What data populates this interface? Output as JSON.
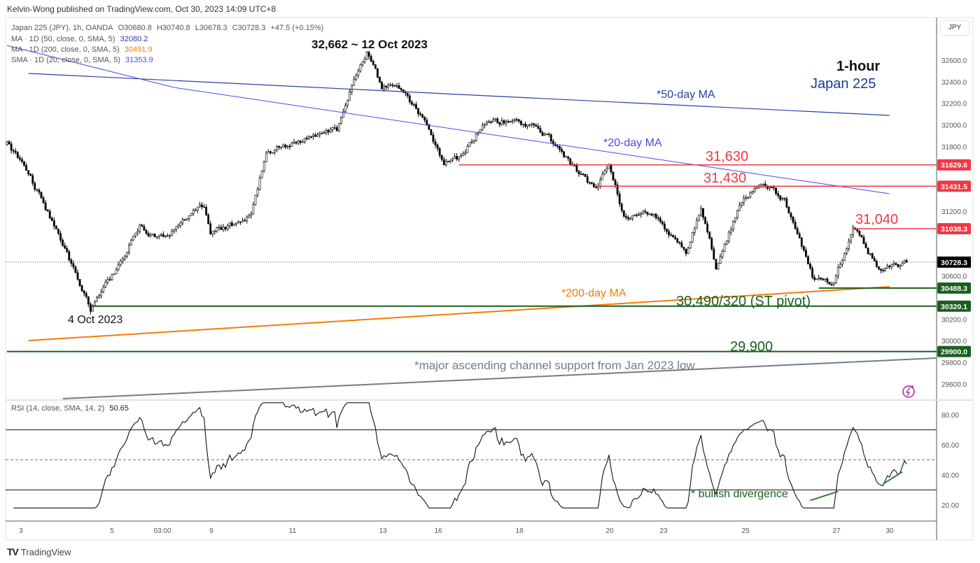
{
  "header": {
    "published": "Kelvin-Wong published on TradingView.com, Oct 30, 2023 14:09 UTC+8",
    "symbol": "Japan 225 (JPY), 1h, OANDA",
    "open": "O30680.8",
    "high": "H30740.8",
    "low": "L30678.3",
    "close": "C30728.3",
    "change": "+47.5 (+0.15%)"
  },
  "indicators": [
    {
      "label": "MA · 1D (50, close, 0, SMA, 5)",
      "value": "32080.2",
      "color": "#2a3fa8"
    },
    {
      "label": "MA · 1D (200, close, 0, SMA, 5)",
      "value": "30491.9",
      "color": "#f57c00"
    },
    {
      "label": "SMA · 1D (20, close, 0, SMA, 5)",
      "value": "31353.9",
      "color": "#4a4ae8"
    }
  ],
  "currency": "JPY",
  "brand": "TradingView",
  "annotations": {
    "peak": "32,662 ~ 12 Oct 2023",
    "low": "4 Oct 2023",
    "timeframe": "1-hour",
    "instrument": "Japan 225",
    "ma50": "*50-day MA",
    "ma20": "*20-day MA",
    "ma200": "*200-day MA",
    "r1": "31,630",
    "r2": "31,430",
    "r3": "31,040",
    "pivot": "30,490/320 (ST pivot)",
    "s2": "29,900",
    "channel": "*major ascending channel support from Jan 2023 low",
    "divergence": "* bullish divergence"
  },
  "chart_data": {
    "type": "candlestick",
    "title": "Japan 225 (JPY), 1h, OANDA",
    "ylim": [
      29500,
      32800
    ],
    "yticks": [
      29600,
      29800,
      30000,
      30200,
      30400,
      30600,
      30800,
      31000,
      31200,
      31400,
      31600,
      31800,
      32000,
      32200,
      32400,
      32600
    ],
    "xticks": [
      "3",
      "5",
      "03:00",
      "9",
      "11",
      "13",
      "16",
      "18",
      "20",
      "23",
      "25",
      "27",
      "30"
    ],
    "bars": 421,
    "price_path": [
      [
        0,
        31820
      ],
      [
        10,
        31560
      ],
      [
        26,
        30900
      ],
      [
        39,
        30300
      ],
      [
        49,
        30600
      ],
      [
        62,
        31050
      ],
      [
        72,
        30950
      ],
      [
        92,
        31250
      ],
      [
        95,
        31000
      ],
      [
        114,
        31150
      ],
      [
        121,
        31750
      ],
      [
        137,
        31850
      ],
      [
        154,
        31950
      ],
      [
        160,
        32300
      ],
      [
        168,
        32662
      ],
      [
        175,
        32350
      ],
      [
        183,
        32350
      ],
      [
        193,
        32100
      ],
      [
        204,
        31650
      ],
      [
        212,
        31700
      ],
      [
        222,
        32000
      ],
      [
        239,
        32050
      ],
      [
        252,
        31900
      ],
      [
        265,
        31600
      ],
      [
        275,
        31400
      ],
      [
        281,
        31650
      ],
      [
        288,
        31150
      ],
      [
        301,
        31200
      ],
      [
        317,
        30800
      ],
      [
        324,
        31250
      ],
      [
        331,
        30700
      ],
      [
        343,
        31300
      ],
      [
        353,
        31450
      ],
      [
        363,
        31300
      ],
      [
        376,
        30600
      ],
      [
        386,
        30550
      ],
      [
        395,
        31050
      ],
      [
        408,
        30650
      ],
      [
        420,
        30728.3
      ]
    ],
    "last_price": 30728.3,
    "levels": [
      {
        "value": 31629.6,
        "label": "31629.6",
        "color": "#f23645",
        "from_bar": 211
      },
      {
        "value": 31431.5,
        "label": "31431.5",
        "color": "#f23645",
        "from_bar": 275
      },
      {
        "value": 31038.3,
        "label": "31038.3",
        "color": "#f23645",
        "from_bar": 395
      },
      {
        "value": 30488.3,
        "label": "30488.3",
        "color": "#1b5e20",
        "from_bar": 379
      },
      {
        "value": 30320.1,
        "label": "30320.1",
        "color": "#1b5e20",
        "from_bar": 39
      },
      {
        "value": 29900.0,
        "label": "29900.0",
        "color": "#1b5e20",
        "from_bar": 0
      }
    ],
    "last_label": "30728.3",
    "ma_lines": [
      {
        "name": "50-day MA",
        "from": [
          10,
          32477
        ],
        "to": [
          412,
          32088
        ],
        "color": "#2a3fa8"
      },
      {
        "name": "20-day MA",
        "from": [
          0,
          32736
        ],
        "to": [
          412,
          31362
        ],
        "mid": [
          78,
          32347
        ],
        "color": "#4a4ae8"
      },
      {
        "name": "200-day MA",
        "from": [
          10,
          30001
        ],
        "to": [
          412,
          30500
        ],
        "color": "#f57c00"
      },
      {
        "name": "channel support",
        "from": [
          26,
          29463
        ],
        "to": [
          433,
          29839
        ],
        "color": "#787b86"
      }
    ],
    "rsi": {
      "label": "RSI (14, close, SMA, 14, 2)",
      "value": "50.65",
      "period": 14,
      "ylim": [
        10,
        90
      ],
      "yticks": [
        "80.00",
        "60.00",
        "40.00",
        "20.00"
      ],
      "bands": [
        30,
        50,
        70
      ],
      "divergence_lines": [
        [
          [
            375,
            23
          ],
          [
            388,
            29
          ]
        ],
        [
          [
            409,
            34
          ],
          [
            418,
            42
          ]
        ]
      ]
    }
  }
}
